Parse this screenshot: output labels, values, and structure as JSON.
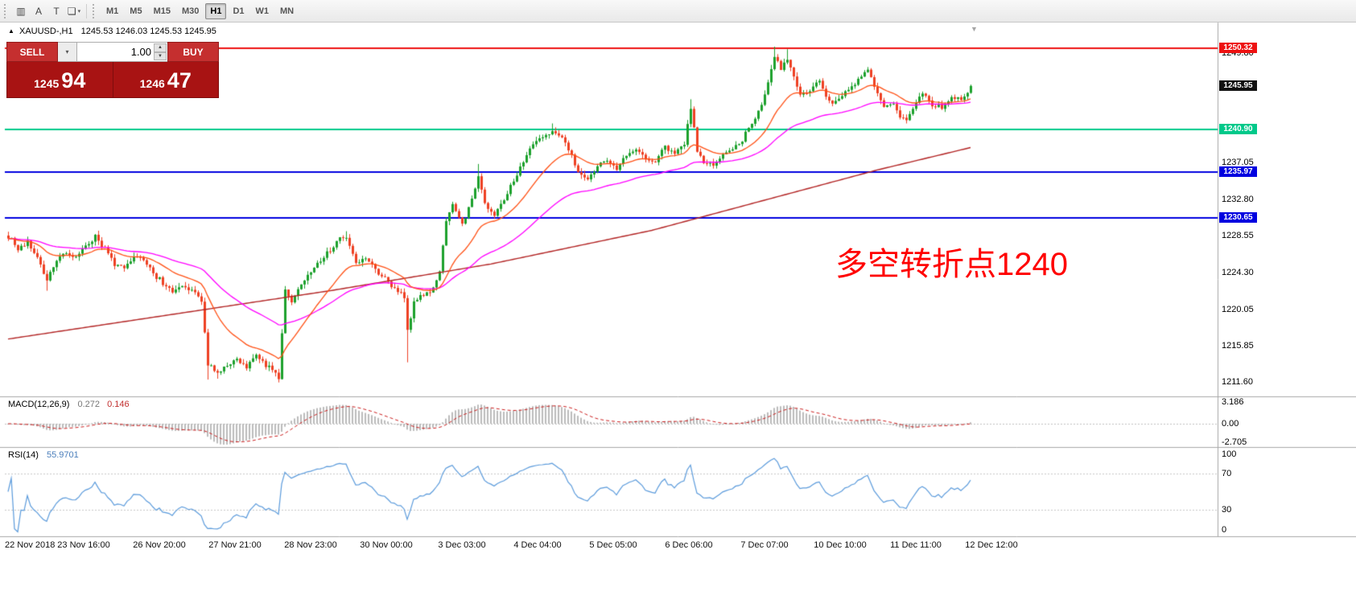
{
  "icons": {
    "dropdown_arrow": "▾",
    "spinner_up": "▲",
    "spinner_down": "▼",
    "shift_marker": "▼",
    "title_arrow": "▲"
  },
  "toolbar": {
    "icon_buttons": [
      {
        "name": "charts-grid-icon",
        "glyph": "▥"
      },
      {
        "name": "text-annotation-icon",
        "glyph": "A"
      },
      {
        "name": "text-box-icon",
        "glyph": "T"
      },
      {
        "name": "objects-icon",
        "glyph": "❏",
        "dropdown": true
      }
    ],
    "timeframes": [
      "M1",
      "M5",
      "M15",
      "M30",
      "H1",
      "D1",
      "W1",
      "MN"
    ],
    "active_timeframe": "H1"
  },
  "chart_header": {
    "symbol_period": "XAUUSD-,H1",
    "ohlc": "1245.53 1246.03 1245.53 1245.95"
  },
  "trade_panel": {
    "sell_label": "SELL",
    "buy_label": "BUY",
    "lot_value": "1.00",
    "bid": {
      "big": "1245",
      "pips": "94"
    },
    "ask": {
      "big": "1246",
      "pips": "47"
    }
  },
  "annotation": {
    "text": "多空转折点1240",
    "color": "#ff0000"
  },
  "price_axis": {
    "ticks": [
      {
        "label": "1249.80",
        "price": 1249.8
      },
      {
        "label": "1237.05",
        "price": 1237.05
      },
      {
        "label": "1232.80",
        "price": 1232.8
      },
      {
        "label": "1228.55",
        "price": 1228.55
      },
      {
        "label": "1224.30",
        "price": 1224.3
      },
      {
        "label": "1220.05",
        "price": 1220.05
      },
      {
        "label": "1215.85",
        "price": 1215.85
      },
      {
        "label": "1211.60",
        "price": 1211.6
      }
    ],
    "levels": [
      {
        "label": "1250.32",
        "price": 1250.32,
        "color": "#ee1111",
        "line": true
      },
      {
        "label": "1245.95",
        "price": 1245.95,
        "color": "#111111",
        "line": false
      },
      {
        "label": "1240.90",
        "price": 1240.9,
        "color": "#00c98a",
        "line": true
      },
      {
        "label": "1235.97",
        "price": 1235.97,
        "color": "#0000e0",
        "line": true
      },
      {
        "label": "1230.65",
        "price": 1230.65,
        "color": "#0000e0",
        "line": true
      }
    ]
  },
  "macd_panel": {
    "title": "MACD(12,26,9)",
    "main_value": "0.272",
    "signal_value": "0.146",
    "ticks": [
      {
        "label": "3.186",
        "value": 3.186
      },
      {
        "label": "0.00",
        "value": 0
      },
      {
        "label": "-2.705",
        "value": -2.705
      }
    ]
  },
  "rsi_panel": {
    "title": "RSI(14)",
    "value": "55.9701",
    "ticks": [
      {
        "label": "100",
        "value": 100
      },
      {
        "label": "70",
        "value": 70
      },
      {
        "label": "30",
        "value": 30
      },
      {
        "label": "0",
        "value": 0
      }
    ]
  },
  "time_axis": {
    "labels": [
      "22 Nov 2018",
      "23 Nov 16:00",
      "26 Nov 20:00",
      "27 Nov 21:00",
      "28 Nov 23:00",
      "30 Nov 00:00",
      "3 Dec 03:00",
      "4 Dec 04:00",
      "5 Dec 05:00",
      "6 Dec 06:00",
      "7 Dec 07:00",
      "10 Dec 10:00",
      "11 Dec 11:00",
      "12 Dec 12:00"
    ]
  },
  "chart_data": {
    "type": "candlestick",
    "symbol": "XAUUSD-",
    "period": "H1",
    "bars": 300,
    "last_close": 1245.95,
    "price_range_visible": [
      1211.6,
      1250.5
    ],
    "seed": 7,
    "close_waypoints": [
      [
        0,
        1228.6
      ],
      [
        3,
        1227.0
      ],
      [
        6,
        1227.9
      ],
      [
        9,
        1226.0
      ],
      [
        12,
        1223.6
      ],
      [
        15,
        1225.6
      ],
      [
        18,
        1226.6
      ],
      [
        21,
        1226.2
      ],
      [
        24,
        1227.3
      ],
      [
        27,
        1228.6
      ],
      [
        30,
        1227.0
      ],
      [
        33,
        1225.2
      ],
      [
        36,
        1224.6
      ],
      [
        39,
        1226.2
      ],
      [
        42,
        1225.6
      ],
      [
        45,
        1224.4
      ],
      [
        48,
        1223.0
      ],
      [
        51,
        1221.9
      ],
      [
        54,
        1222.7
      ],
      [
        57,
        1222.3
      ],
      [
        60,
        1220.8
      ],
      [
        62,
        1213.6
      ],
      [
        65,
        1212.7
      ],
      [
        68,
        1213.8
      ],
      [
        71,
        1214.3
      ],
      [
        74,
        1213.3
      ],
      [
        77,
        1214.7
      ],
      [
        80,
        1213.6
      ],
      [
        83,
        1212.6
      ],
      [
        84,
        1212.1
      ],
      [
        86,
        1222.2
      ],
      [
        88,
        1220.9
      ],
      [
        91,
        1222.8
      ],
      [
        94,
        1224.4
      ],
      [
        97,
        1225.7
      ],
      [
        100,
        1226.9
      ],
      [
        103,
        1228.1
      ],
      [
        105,
        1228.4
      ],
      [
        108,
        1225.3
      ],
      [
        111,
        1226.0
      ],
      [
        114,
        1224.7
      ],
      [
        117,
        1223.5
      ],
      [
        120,
        1222.3
      ],
      [
        123,
        1221.4
      ],
      [
        124,
        1217.7
      ],
      [
        126,
        1220.9
      ],
      [
        129,
        1221.8
      ],
      [
        132,
        1222.4
      ],
      [
        134,
        1224.6
      ],
      [
        136,
        1230.3
      ],
      [
        138,
        1232.3
      ],
      [
        141,
        1229.8
      ],
      [
        144,
        1232.9
      ],
      [
        146,
        1235.5
      ],
      [
        148,
        1232.4
      ],
      [
        151,
        1230.9
      ],
      [
        154,
        1232.8
      ],
      [
        157,
        1235.0
      ],
      [
        160,
        1237.3
      ],
      [
        163,
        1239.0
      ],
      [
        166,
        1240.1
      ],
      [
        169,
        1240.6
      ],
      [
        172,
        1240.0
      ],
      [
        175,
        1237.9
      ],
      [
        177,
        1235.8
      ],
      [
        180,
        1235.1
      ],
      [
        183,
        1236.6
      ],
      [
        186,
        1237.4
      ],
      [
        189,
        1236.4
      ],
      [
        192,
        1237.9
      ],
      [
        195,
        1238.7
      ],
      [
        198,
        1237.3
      ],
      [
        201,
        1237.0
      ],
      [
        204,
        1238.9
      ],
      [
        207,
        1238.1
      ],
      [
        210,
        1239.3
      ],
      [
        212,
        1243.5
      ],
      [
        214,
        1238.6
      ],
      [
        216,
        1237.1
      ],
      [
        219,
        1236.7
      ],
      [
        222,
        1237.9
      ],
      [
        225,
        1238.8
      ],
      [
        228,
        1239.7
      ],
      [
        231,
        1241.6
      ],
      [
        234,
        1243.9
      ],
      [
        236,
        1246.5
      ],
      [
        238,
        1249.5
      ],
      [
        240,
        1247.7
      ],
      [
        242,
        1248.9
      ],
      [
        244,
        1246.8
      ],
      [
        246,
        1244.9
      ],
      [
        249,
        1245.4
      ],
      [
        252,
        1246.7
      ],
      [
        254,
        1244.9
      ],
      [
        256,
        1243.7
      ],
      [
        259,
        1244.6
      ],
      [
        262,
        1245.8
      ],
      [
        265,
        1247.0
      ],
      [
        267,
        1247.7
      ],
      [
        269,
        1245.9
      ],
      [
        272,
        1243.4
      ],
      [
        275,
        1243.9
      ],
      [
        277,
        1242.3
      ],
      [
        279,
        1242.0
      ],
      [
        282,
        1244.0
      ],
      [
        284,
        1245.3
      ],
      [
        287,
        1243.7
      ],
      [
        290,
        1243.4
      ],
      [
        293,
        1244.8
      ],
      [
        296,
        1244.2
      ],
      [
        299,
        1245.95
      ]
    ],
    "spikes": [
      {
        "i": 12,
        "low": 1222.2
      },
      {
        "i": 62,
        "low": 1211.9
      },
      {
        "i": 65,
        "low": 1212.0
      },
      {
        "i": 84,
        "low": 1211.6
      },
      {
        "i": 105,
        "high": 1229.1
      },
      {
        "i": 124,
        "low": 1213.9
      },
      {
        "i": 146,
        "high": 1236.9
      },
      {
        "i": 169,
        "high": 1241.6
      },
      {
        "i": 212,
        "high": 1244.4
      },
      {
        "i": 238,
        "high": 1250.5
      },
      {
        "i": 242,
        "high": 1250.2
      }
    ],
    "moving_averages": [
      {
        "name": "fast",
        "type": "EMA",
        "period": 20,
        "color": "#ff5014"
      },
      {
        "name": "mid",
        "type": "EMA",
        "period": 55,
        "color": "#ff00ff"
      },
      {
        "name": "slow",
        "type": "path",
        "color": "#b22222",
        "path": [
          [
            0,
            1216.6
          ],
          [
            50,
            1219.4
          ],
          [
            100,
            1222.2
          ],
          [
            150,
            1225.3
          ],
          [
            200,
            1229.2
          ],
          [
            240,
            1233.2
          ],
          [
            270,
            1236.2
          ],
          [
            299,
            1238.8
          ]
        ]
      }
    ],
    "indicators": {
      "macd": {
        "fast": 12,
        "slow": 26,
        "signal": 9,
        "hist_color": "#bbbbbb",
        "signal_color": "#cc2020"
      },
      "rsi": {
        "period": 14,
        "color": "#5b9bdc",
        "levels": [
          30,
          70
        ]
      }
    },
    "candle_colors": {
      "up": "#1ca12c",
      "down": "#ee4023"
    }
  }
}
